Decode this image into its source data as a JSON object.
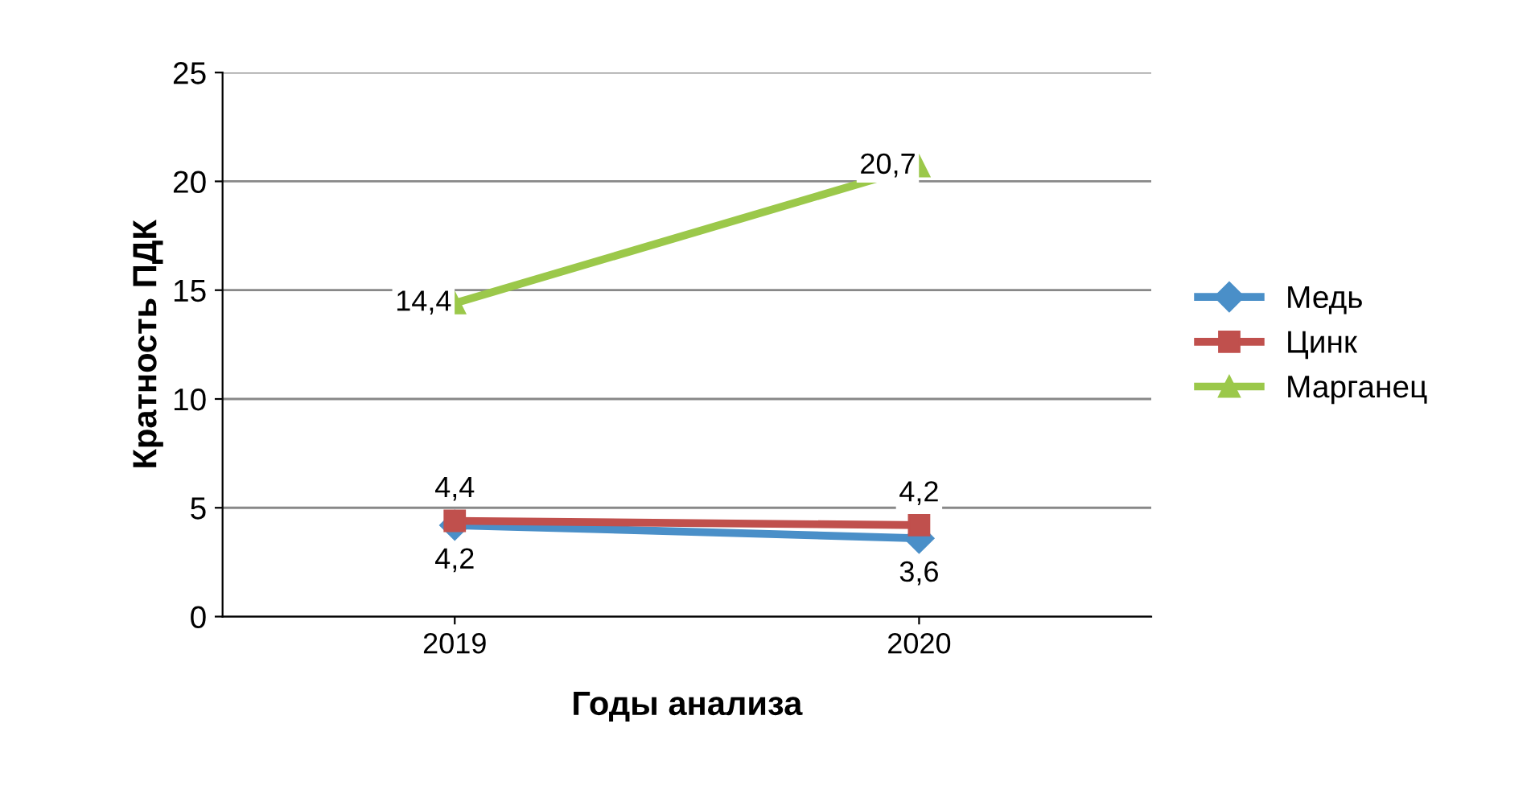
{
  "chart_data": {
    "type": "line",
    "xlabel": "Годы анализа",
    "ylabel": "Кратность ПДК",
    "categories": [
      "2019",
      "2020"
    ],
    "series": [
      {
        "name": "Медь",
        "color": "#4a8fc8",
        "values": [
          4.2,
          3.6
        ],
        "marker": "diamond",
        "value_labels": [
          "4,2",
          "3,6"
        ]
      },
      {
        "name": "Цинк",
        "color": "#c0504d",
        "values": [
          4.4,
          4.2
        ],
        "marker": "square",
        "value_labels": [
          "4,4",
          "4,2"
        ]
      },
      {
        "name": "Марганец",
        "color": "#9bc84a",
        "values": [
          14.4,
          20.7
        ],
        "marker": "triangle",
        "value_labels": [
          "14,4",
          "20,7"
        ]
      }
    ],
    "ylim": [
      0,
      25
    ],
    "yticks": [
      0,
      5,
      10,
      15,
      20,
      25
    ],
    "grid": "y",
    "legend": "right"
  }
}
